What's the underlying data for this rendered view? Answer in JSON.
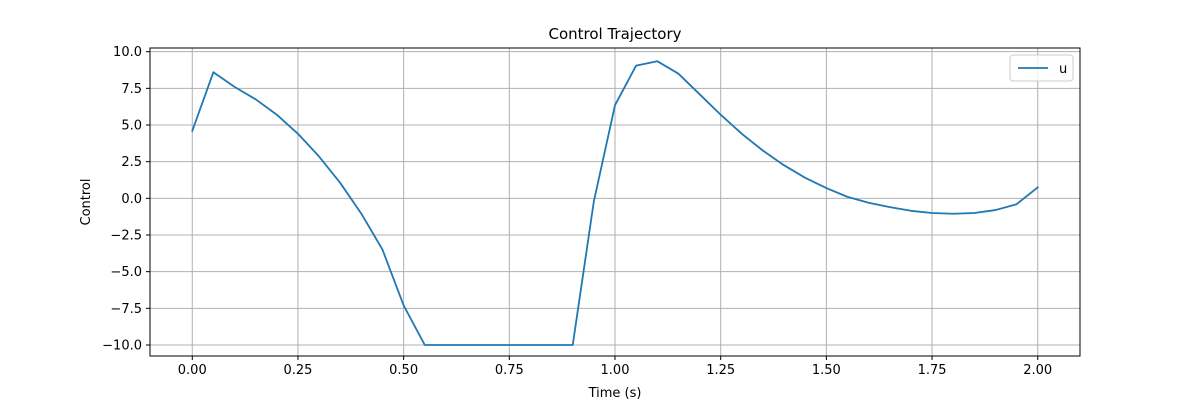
{
  "chart_data": {
    "type": "line",
    "title": "Control Trajectory",
    "xlabel": "Time (s)",
    "ylabel": "Control",
    "xlim": [
      -0.1,
      2.1
    ],
    "ylim": [
      -10.75,
      10.25
    ],
    "xticks": [
      0.0,
      0.25,
      0.5,
      0.75,
      1.0,
      1.25,
      1.5,
      1.75,
      2.0
    ],
    "xtick_labels": [
      "0.00",
      "0.25",
      "0.50",
      "0.75",
      "1.00",
      "1.25",
      "1.50",
      "1.75",
      "2.00"
    ],
    "yticks": [
      10.0,
      7.5,
      5.0,
      2.5,
      0.0,
      -2.5,
      -5.0,
      -7.5,
      -10.0
    ],
    "ytick_labels": [
      "10.0",
      "7.5",
      "5.0",
      "2.5",
      "0.0",
      "−2.5",
      "−5.0",
      "−7.5",
      "−10.0"
    ],
    "grid": true,
    "legend_position": "top-right",
    "color": "#1f77b4",
    "series": [
      {
        "name": "u",
        "x": [
          0.0,
          0.05,
          0.1,
          0.15,
          0.2,
          0.25,
          0.3,
          0.35,
          0.4,
          0.45,
          0.5,
          0.55,
          0.6,
          0.65,
          0.7,
          0.75,
          0.8,
          0.85,
          0.9,
          0.95,
          1.0,
          1.05,
          1.1,
          1.15,
          1.2,
          1.25,
          1.3,
          1.35,
          1.4,
          1.45,
          1.5,
          1.55,
          1.6,
          1.65,
          1.7,
          1.75,
          1.8,
          1.85,
          1.9,
          1.95,
          2.0
        ],
        "y": [
          4.6,
          8.6,
          7.6,
          6.75,
          5.7,
          4.4,
          2.85,
          1.05,
          -1.05,
          -3.5,
          -7.3,
          -10.0,
          -10.0,
          -10.0,
          -10.0,
          -10.0,
          -10.0,
          -10.0,
          -10.0,
          -0.2,
          6.35,
          9.05,
          9.35,
          8.5,
          7.1,
          5.7,
          4.4,
          3.25,
          2.25,
          1.4,
          0.7,
          0.1,
          -0.3,
          -0.6,
          -0.85,
          -1.0,
          -1.05,
          -1.0,
          -0.8,
          -0.4,
          0.75
        ]
      }
    ]
  }
}
